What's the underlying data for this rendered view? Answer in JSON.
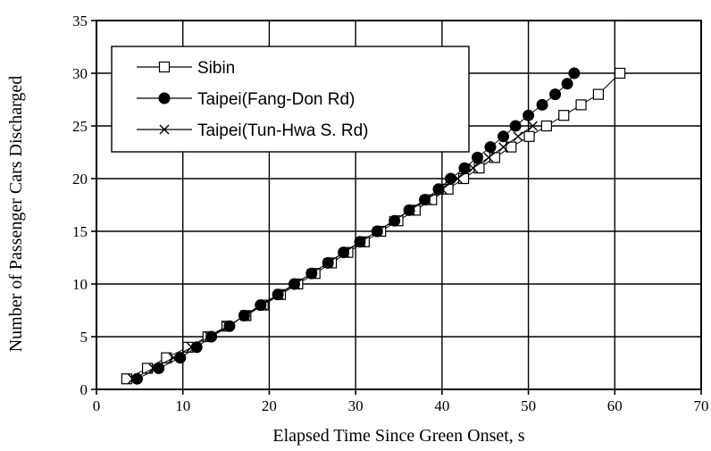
{
  "chart_data": {
    "type": "line",
    "xlabel": "Elapsed Time Since Green Onset, s",
    "ylabel": "Number of Passenger Cars Discharged",
    "xlim": [
      0,
      70
    ],
    "ylim": [
      0,
      35
    ],
    "xticks": [
      0,
      10,
      20,
      30,
      40,
      50,
      60,
      70
    ],
    "yticks": [
      0,
      5,
      10,
      15,
      20,
      25,
      30,
      35
    ],
    "grid": true,
    "legend_position": "top-left",
    "series": [
      {
        "name": "Sibin",
        "marker": "open-square",
        "x": [
          3.5,
          5.9,
          8.1,
          10.6,
          12.9,
          15.1,
          17.3,
          19.3,
          21.3,
          23.3,
          25.3,
          27.2,
          29.1,
          31.0,
          32.9,
          34.9,
          36.9,
          38.8,
          40.7,
          42.5,
          44.3,
          46.1,
          48.0,
          50.1,
          52.1,
          54.1,
          56.1,
          58.1,
          60.6
        ],
        "y": [
          1,
          2,
          3,
          4,
          5,
          6,
          7,
          8,
          9,
          10,
          11,
          12,
          13,
          14,
          15,
          16,
          17,
          18,
          19,
          20,
          21,
          22,
          23,
          24,
          25,
          26,
          27,
          28,
          30
        ]
      },
      {
        "name": "Taipei(Fang-Don Rd)",
        "marker": "filled-circle",
        "x": [
          4.7,
          7.2,
          9.7,
          11.6,
          13.3,
          15.4,
          17.1,
          19.0,
          21.0,
          22.9,
          24.9,
          26.8,
          28.6,
          30.5,
          32.5,
          34.5,
          36.2,
          38.0,
          39.6,
          41.0,
          42.6,
          44.1,
          45.6,
          47.1,
          48.5,
          50.0,
          51.6,
          53.1,
          54.5,
          55.3
        ],
        "y": [
          1,
          2,
          3,
          4,
          5,
          6,
          7,
          8,
          9,
          10,
          11,
          12,
          13,
          14,
          15,
          16,
          17,
          18,
          19,
          20,
          21,
          22,
          23,
          24,
          25,
          26,
          27,
          28,
          29,
          30
        ]
      },
      {
        "name": "Taipei(Tun-Hwa S. Rd)",
        "marker": "cross",
        "x": [
          4.2,
          6.6,
          8.9,
          11.0,
          13.1,
          15.2,
          17.2,
          19.2,
          21.1,
          23.0,
          24.9,
          26.8,
          28.7,
          30.6,
          32.5,
          34.4,
          36.3,
          38.2,
          40.0,
          41.8,
          43.6,
          45.4,
          47.1,
          48.8,
          50.5
        ],
        "y": [
          1,
          2,
          3,
          4,
          5,
          6,
          7,
          8,
          9,
          10,
          11,
          12,
          13,
          14,
          15,
          16,
          17,
          18,
          19,
          20,
          21,
          22,
          23,
          24,
          25
        ]
      }
    ]
  }
}
